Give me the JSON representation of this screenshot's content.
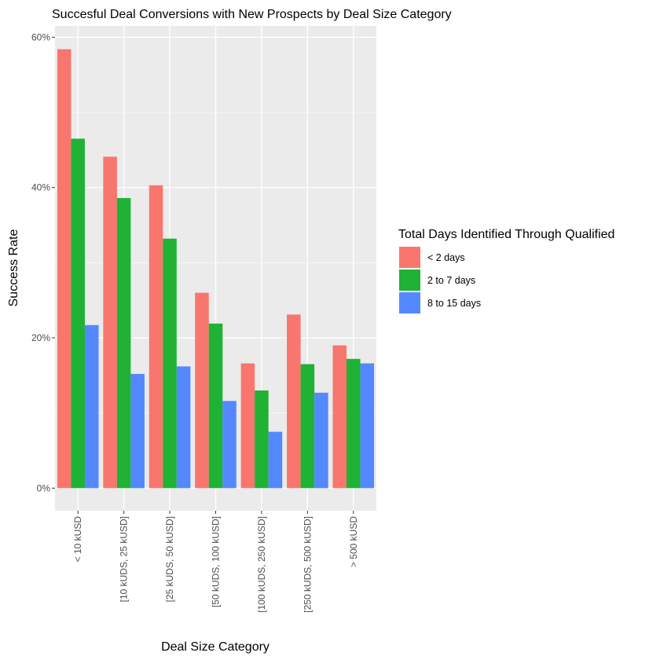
{
  "chart_data": {
    "type": "bar",
    "title": "Succesful Deal Conversions with New Prospects by Deal Size Category",
    "xlabel": "Deal Size Category",
    "ylabel": "Success Rate",
    "categories": [
      "< 10 kUSD",
      "[10 kUDS, 25 kUSD]",
      "[25 kUDS, 50 kUSD]",
      "[50 kUDS, 100 kUSD]",
      "[100 kUDS, 250 kUSD]",
      "[250 kUDS, 500 kUSD]",
      "> 500 kUSD"
    ],
    "y_ticks": [
      0,
      0.2,
      0.4,
      0.6
    ],
    "y_tick_labels": [
      "0%",
      "20%",
      "40%",
      "60%"
    ],
    "ylim": [
      -0.03,
      0.615
    ],
    "grid": true,
    "legend": {
      "title": "Total Days Identified Through Qualified",
      "position": "right"
    },
    "series": [
      {
        "name": "< 2 days",
        "color": "#F8766D",
        "values": [
          0.584,
          0.441,
          0.403,
          0.26,
          0.166,
          0.231,
          0.19
        ]
      },
      {
        "name": "2 to 7 days",
        "color": "#1FB234",
        "values": [
          0.465,
          0.386,
          0.332,
          0.219,
          0.13,
          0.165,
          0.172
        ]
      },
      {
        "name": "8 to 15 days",
        "color": "#5388FF",
        "values": [
          0.217,
          0.152,
          0.162,
          0.116,
          0.075,
          0.127,
          0.166
        ]
      }
    ]
  }
}
